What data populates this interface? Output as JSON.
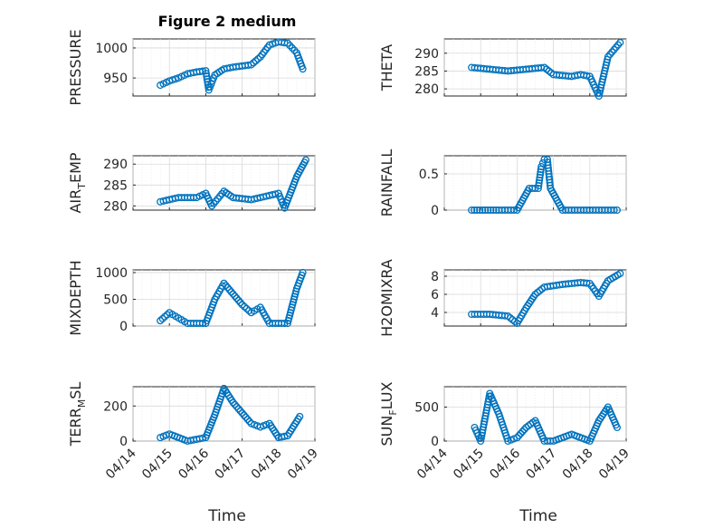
{
  "figure": {
    "title": "Figure 2 medium",
    "xlabel": "Time",
    "date_ticks": [
      "04/14",
      "04/15",
      "04/16",
      "04/17",
      "04/18",
      "04/19"
    ]
  },
  "chart_data": [
    {
      "type": "scatter",
      "ylabel": "PRESSURE",
      "title": "Figure 2 medium",
      "xlim": [
        "04/14",
        "04/19"
      ],
      "ylim": [
        920,
        1015
      ],
      "yticks": [
        950,
        1000
      ],
      "grid": true,
      "marker": "circle",
      "color": "#0072BD",
      "x": [
        "04/14 18:00",
        "04/15 00:00",
        "04/15 06:00",
        "04/15 12:00",
        "04/15 18:00",
        "04/16 00:00",
        "04/16 02:00",
        "04/16 06:00",
        "04/16 12:00",
        "04/16 18:00",
        "04/17 00:00",
        "04/17 06:00",
        "04/17 12:00",
        "04/17 18:00",
        "04/18 00:00",
        "04/18 06:00",
        "04/18 12:00",
        "04/18 16:00"
      ],
      "y": [
        938,
        945,
        950,
        957,
        960,
        962,
        930,
        955,
        965,
        968,
        970,
        972,
        985,
        1005,
        1010,
        1008,
        992,
        965
      ]
    },
    {
      "type": "scatter",
      "ylabel": "THETA",
      "xlim": [
        "04/14",
        "04/19"
      ],
      "ylim": [
        278,
        294
      ],
      "yticks": [
        280,
        285,
        290
      ],
      "grid": true,
      "marker": "circle",
      "color": "#0072BD",
      "x": [
        "04/14 18:00",
        "04/15 06:00",
        "04/15 18:00",
        "04/16 06:00",
        "04/16 18:00",
        "04/17 00:00",
        "04/17 12:00",
        "04/17 18:00",
        "04/18 00:00",
        "04/18 06:00",
        "04/18 12:00",
        "04/18 20:00"
      ],
      "y": [
        286,
        285.5,
        285,
        285.5,
        286,
        284,
        283.5,
        284,
        283.5,
        278,
        289,
        293
      ]
    },
    {
      "type": "scatter",
      "ylabel": "AIR_TEMP",
      "xlim": [
        "04/14",
        "04/19"
      ],
      "ylim": [
        279,
        292
      ],
      "yticks": [
        280,
        285,
        290
      ],
      "grid": true,
      "marker": "circle",
      "color": "#0072BD",
      "x": [
        "04/14 18:00",
        "04/15 06:00",
        "04/15 18:00",
        "04/16 00:00",
        "04/16 04:00",
        "04/16 12:00",
        "04/16 18:00",
        "04/17 06:00",
        "04/17 18:00",
        "04/18 00:00",
        "04/18 04:00",
        "04/18 12:00",
        "04/18 18:00"
      ],
      "y": [
        281,
        282,
        282,
        283,
        280,
        283.5,
        282,
        281.5,
        282.5,
        283,
        279.5,
        287,
        291
      ]
    },
    {
      "type": "scatter",
      "ylabel": "RAINFALL",
      "xlim": [
        "04/14",
        "04/19"
      ],
      "ylim": [
        0,
        0.75
      ],
      "yticks": [
        0,
        0.5
      ],
      "grid": true,
      "marker": "circle",
      "color": "#0072BD",
      "x": [
        "04/14 18:00",
        "04/15 12:00",
        "04/16 00:00",
        "04/16 08:00",
        "04/16 14:00",
        "04/16 16:00",
        "04/16 18:00",
        "04/16 20:00",
        "04/16 22:00",
        "04/17 06:00",
        "04/17 18:00",
        "04/18 06:00",
        "04/18 18:00"
      ],
      "y": [
        0,
        0,
        0,
        0.3,
        0.3,
        0.6,
        0.7,
        0.7,
        0.3,
        0,
        0,
        0,
        0
      ]
    },
    {
      "type": "scatter",
      "ylabel": "MIXDEPTH",
      "xlim": [
        "04/14",
        "04/19"
      ],
      "ylim": [
        0,
        1050
      ],
      "yticks": [
        0,
        500,
        1000
      ],
      "grid": true,
      "marker": "circle",
      "color": "#0072BD",
      "x": [
        "04/14 18:00",
        "04/15 00:00",
        "04/15 06:00",
        "04/15 12:00",
        "04/16 00:00",
        "04/16 06:00",
        "04/16 12:00",
        "04/16 18:00",
        "04/17 00:00",
        "04/17 06:00",
        "04/17 12:00",
        "04/17 18:00",
        "04/18 06:00",
        "04/18 12:00",
        "04/18 16:00"
      ],
      "y": [
        100,
        250,
        150,
        50,
        50,
        500,
        800,
        600,
        400,
        250,
        350,
        50,
        50,
        700,
        1000
      ]
    },
    {
      "type": "scatter",
      "ylabel": "H2OMIXRA",
      "xlim": [
        "04/14",
        "04/19"
      ],
      "ylim": [
        2.5,
        8.7
      ],
      "yticks": [
        4,
        6,
        8
      ],
      "grid": true,
      "marker": "circle",
      "color": "#0072BD",
      "x": [
        "04/14 18:00",
        "04/15 06:00",
        "04/15 18:00",
        "04/16 00:00",
        "04/16 06:00",
        "04/16 12:00",
        "04/16 18:00",
        "04/17 06:00",
        "04/17 18:00",
        "04/18 00:00",
        "04/18 06:00",
        "04/18 12:00",
        "04/18 20:00"
      ],
      "y": [
        3.8,
        3.8,
        3.6,
        2.8,
        4.5,
        6,
        6.8,
        7.1,
        7.3,
        7.2,
        5.8,
        7.5,
        8.3
      ]
    },
    {
      "type": "scatter",
      "ylabel": "TERR_MSL",
      "xlim": [
        "04/14",
        "04/19"
      ],
      "ylim": [
        0,
        310
      ],
      "yticks": [
        0,
        200
      ],
      "grid": true,
      "marker": "circle",
      "color": "#0072BD",
      "x": [
        "04/14 18:00",
        "04/15 00:00",
        "04/15 12:00",
        "04/16 00:00",
        "04/16 06:00",
        "04/16 12:00",
        "04/16 18:00",
        "04/17 00:00",
        "04/17 06:00",
        "04/17 12:00",
        "04/17 18:00",
        "04/18 00:00",
        "04/18 06:00",
        "04/18 14:00"
      ],
      "y": [
        20,
        40,
        0,
        20,
        150,
        300,
        220,
        160,
        100,
        80,
        100,
        20,
        30,
        140
      ]
    },
    {
      "type": "scatter",
      "ylabel": "SUN_FLUX",
      "xlim": [
        "04/14",
        "04/19"
      ],
      "ylim": [
        0,
        800
      ],
      "yticks": [
        0,
        500
      ],
      "grid": true,
      "marker": "circle",
      "color": "#0072BD",
      "x": [
        "04/14 20:00",
        "04/15 00:00",
        "04/15 06:00",
        "04/15 12:00",
        "04/15 18:00",
        "04/16 00:00",
        "04/16 06:00",
        "04/16 12:00",
        "04/16 18:00",
        "04/17 00:00",
        "04/17 12:00",
        "04/18 00:00",
        "04/18 06:00",
        "04/18 12:00",
        "04/18 18:00"
      ],
      "y": [
        200,
        0,
        700,
        400,
        0,
        50,
        200,
        300,
        0,
        0,
        100,
        0,
        300,
        500,
        200
      ]
    }
  ]
}
